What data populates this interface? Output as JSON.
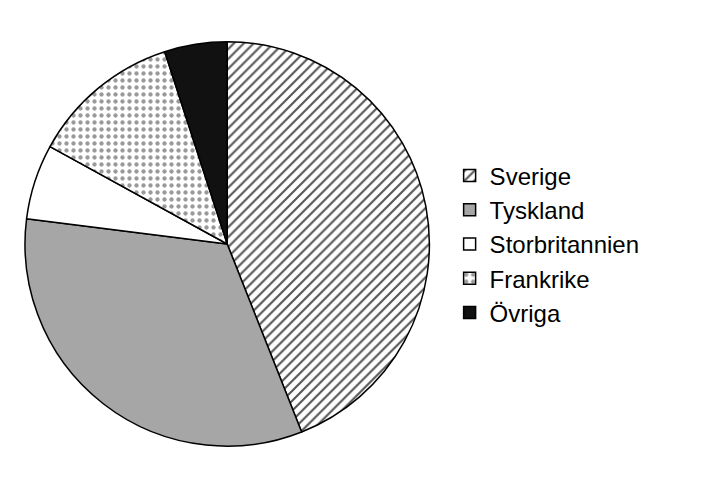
{
  "chart_data": {
    "type": "pie",
    "categories": [
      "Sverige",
      "Tyskland",
      "Storbritannien",
      "Frankrike",
      "Övriga"
    ],
    "values": [
      44,
      33,
      6,
      12,
      5
    ],
    "colors": [
      "#ffffff",
      "#a6a6a6",
      "#ffffff",
      "#ffffff",
      "#111111"
    ],
    "legend": "right"
  }
}
